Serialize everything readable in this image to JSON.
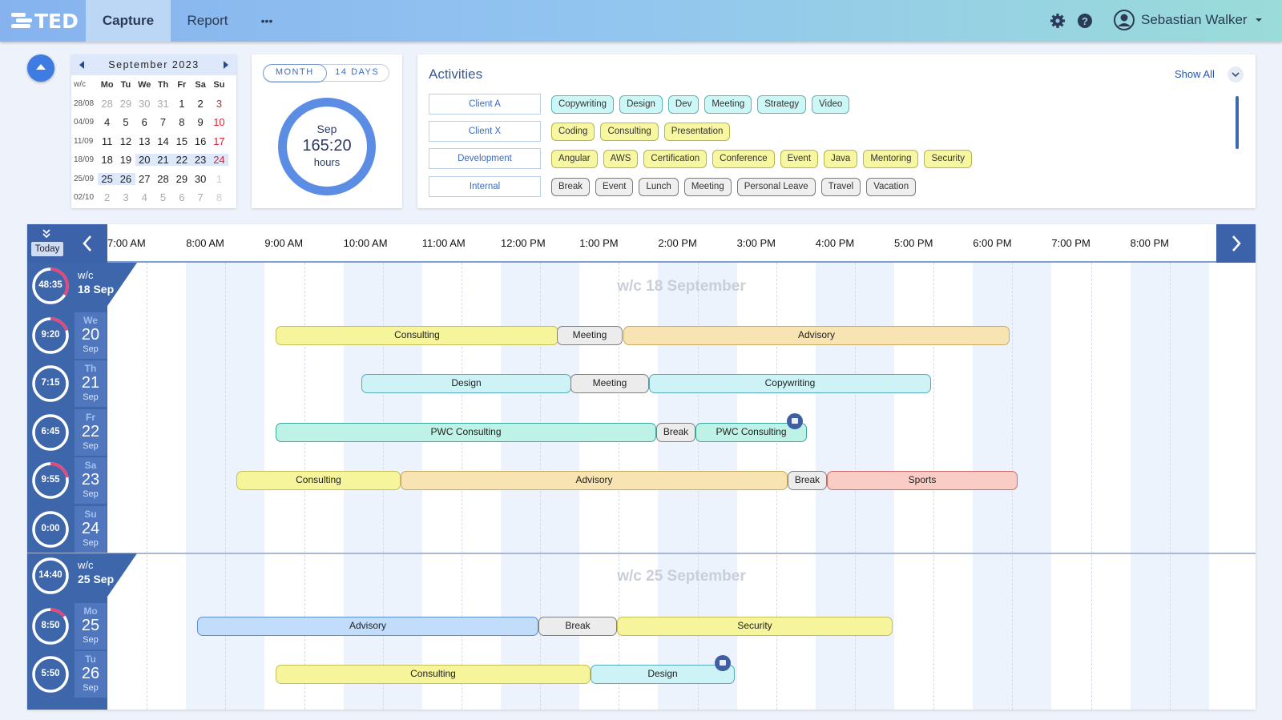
{
  "app": {
    "name": "TED"
  },
  "nav": {
    "tabs": [
      {
        "label": "Capture",
        "active": true
      },
      {
        "label": "Report",
        "active": false
      }
    ],
    "more_label": "•••"
  },
  "user": {
    "name": "Sebastian Walker"
  },
  "calendar": {
    "title": "September 2023",
    "wc_header": "w/c",
    "weekdays": [
      "Mo",
      "Tu",
      "We",
      "Th",
      "Fr",
      "Sa",
      "Su"
    ],
    "weeks": [
      {
        "wc": "28/08",
        "days": [
          "28",
          "29",
          "30",
          "31",
          "1",
          "2",
          "3"
        ]
      },
      {
        "wc": "04/09",
        "days": [
          "4",
          "5",
          "6",
          "7",
          "8",
          "9",
          "10"
        ]
      },
      {
        "wc": "11/09",
        "days": [
          "11",
          "12",
          "13",
          "14",
          "15",
          "16",
          "17"
        ]
      },
      {
        "wc": "18/09",
        "days": [
          "18",
          "19",
          "20",
          "21",
          "22",
          "23",
          "24"
        ]
      },
      {
        "wc": "25/09",
        "days": [
          "25",
          "26",
          "27",
          "28",
          "29",
          "30",
          "1"
        ]
      },
      {
        "wc": "02/10",
        "days": [
          "2",
          "3",
          "4",
          "5",
          "6",
          "7",
          "8"
        ]
      }
    ]
  },
  "summary": {
    "toggle": [
      "MONTH",
      "14 DAYS"
    ],
    "active_toggle": "MONTH",
    "month": "Sep",
    "total": "165:20",
    "unit": "hours"
  },
  "activities": {
    "title": "Activities",
    "show_all": "Show All",
    "groups": [
      {
        "label": "Client A",
        "color": "cyan",
        "items": [
          "Copywriting",
          "Design",
          "Dev",
          "Meeting",
          "Strategy",
          "Video"
        ]
      },
      {
        "label": "Client X",
        "color": "yellow",
        "items": [
          "Coding",
          "Consulting",
          "Presentation"
        ]
      },
      {
        "label": "Development",
        "color": "yellow",
        "items": [
          "Angular",
          "AWS",
          "Certification",
          "Conference",
          "Event",
          "Java",
          "Mentoring",
          "Security"
        ]
      },
      {
        "label": "Internal",
        "color": "gray",
        "items": [
          "Break",
          "Event",
          "Lunch",
          "Meeting",
          "Personal Leave",
          "Travel",
          "Vacation"
        ]
      }
    ]
  },
  "timeline": {
    "today_label": "Today",
    "hours": [
      "7:00 AM",
      "8:00 AM",
      "9:00 AM",
      "10:00 AM",
      "11:00 AM",
      "12:00 PM",
      "1:00 PM",
      "2:00 PM",
      "3:00 PM",
      "4:00 PM",
      "5:00 PM",
      "6:00 PM",
      "7:00 PM",
      "8:00 PM"
    ],
    "weeks": [
      {
        "title": "w/c 18 September",
        "wc": "w/c",
        "wc_date": "18 Sep",
        "total": "48:35",
        "progress": 0.34,
        "days": [
          {
            "dow": "We",
            "day": "20",
            "month": "Sep",
            "total": "9:20",
            "progress": 0.2,
            "entries": [
              {
                "label": "Consulting",
                "color": "yellow"
              },
              {
                "label": "Meeting",
                "color": "gray"
              },
              {
                "label": "Advisory",
                "color": "peach"
              }
            ]
          },
          {
            "dow": "Th",
            "day": "21",
            "month": "Sep",
            "total": "7:15",
            "progress": 0.0,
            "entries": [
              {
                "label": "Design",
                "color": "cyan"
              },
              {
                "label": "Meeting",
                "color": "gray"
              },
              {
                "label": "Copywriting",
                "color": "cyan"
              }
            ]
          },
          {
            "dow": "Fr",
            "day": "22",
            "month": "Sep",
            "total": "6:45",
            "progress": 0.0,
            "entries": [
              {
                "label": "PWC Consulting",
                "color": "teal"
              },
              {
                "label": "Break",
                "color": "gray"
              },
              {
                "label": "PWC Consulting",
                "color": "teal"
              }
            ]
          },
          {
            "dow": "Sa",
            "day": "23",
            "month": "Sep",
            "total": "9:55",
            "progress": 0.22,
            "entries": [
              {
                "label": "Consulting",
                "color": "yellow"
              },
              {
                "label": "Advisory",
                "color": "peach"
              },
              {
                "label": "Break",
                "color": "gray"
              },
              {
                "label": "Sports",
                "color": "pink"
              }
            ]
          },
          {
            "dow": "Su",
            "day": "24",
            "month": "Sep",
            "total": "0:00",
            "progress": 0.0,
            "entries": []
          }
        ]
      },
      {
        "title": "w/c 25 September",
        "wc": "w/c",
        "wc_date": "25 Sep",
        "total": "14:40",
        "progress": 0.0,
        "days": [
          {
            "dow": "Mo",
            "day": "25",
            "month": "Sep",
            "total": "8:50",
            "progress": 0.15,
            "entries": [
              {
                "label": "Advisory",
                "color": "blue"
              },
              {
                "label": "Break",
                "color": "gray"
              },
              {
                "label": "Security",
                "color": "yellow"
              }
            ]
          },
          {
            "dow": "Tu",
            "day": "26",
            "month": "Sep",
            "total": "5:50",
            "progress": 0.0,
            "entries": [
              {
                "label": "Consulting",
                "color": "yellow"
              },
              {
                "label": "Design",
                "color": "cyan"
              }
            ]
          }
        ]
      }
    ]
  }
}
